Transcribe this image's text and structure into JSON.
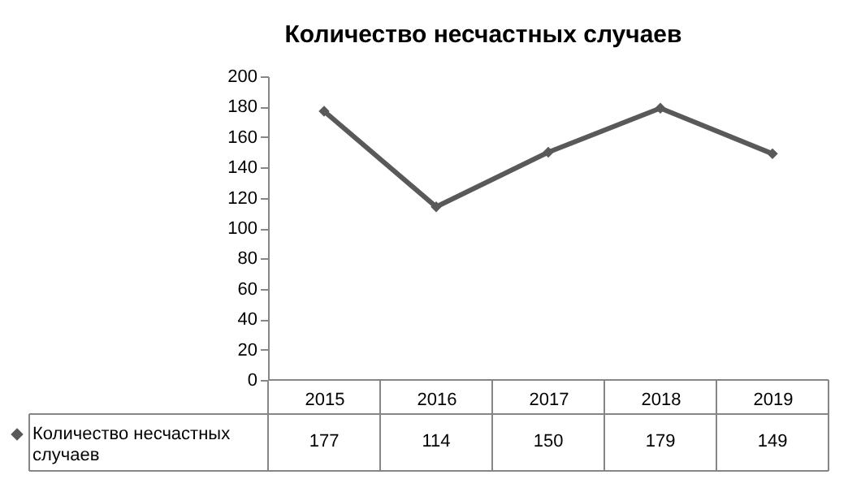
{
  "chart_data": {
    "type": "line",
    "title": "Количество несчастных случаев",
    "categories": [
      "2015",
      "2016",
      "2017",
      "2018",
      "2019"
    ],
    "series": [
      {
        "name": "Количество несчастных случаев",
        "color": "#595959",
        "values": [
          177,
          114,
          150,
          179,
          149
        ]
      }
    ],
    "ylim": [
      0,
      200
    ],
    "yticks": [
      0,
      20,
      40,
      60,
      80,
      100,
      120,
      140,
      160,
      180,
      200
    ],
    "grid": false,
    "marker": "diamond",
    "data_labels": true,
    "legend": "bottom left"
  }
}
